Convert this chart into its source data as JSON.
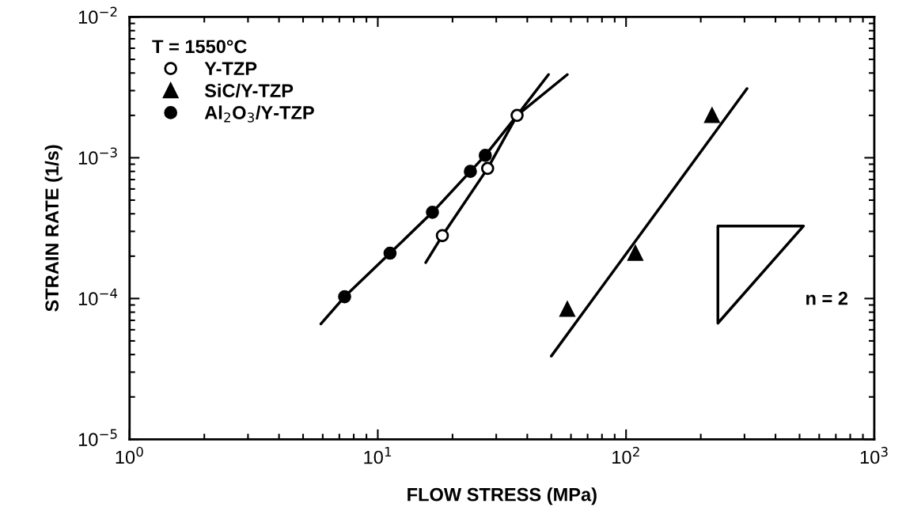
{
  "chart_data": {
    "type": "scatter",
    "xlabel": "FLOW STRESS (MPa)",
    "ylabel": "STRAIN RATE (1/s)",
    "legend_title": "T = 1550°C",
    "legend": "top left",
    "log": "xy",
    "grid": false,
    "xlim": [
      1,
      1000
    ],
    "ylim": [
      1e-05,
      0.01
    ],
    "xticks": [
      {
        "value": 1,
        "label": "10$^{0}$"
      },
      {
        "value": 10,
        "label": "10$^{1}$"
      },
      {
        "value": 100,
        "label": "10$^{2}$"
      },
      {
        "value": 1000,
        "label": "10$^{3}$"
      }
    ],
    "yticks": [
      {
        "value": 1e-05,
        "label": "10$^{−5}$"
      },
      {
        "value": 0.0001,
        "label": "10$^{−4}$"
      },
      {
        "value": 0.001,
        "label": "10$^{−3}$"
      },
      {
        "value": 0.01,
        "label": "10$^{−2}$"
      }
    ],
    "series": [
      {
        "name": "Y-TZP",
        "marker": "circle",
        "color": "#ffffff",
        "x": [
          18.2,
          27.7,
          36.4
        ],
        "values": [
          0.00028,
          0.00084,
          0.002
        ]
      },
      {
        "name": "SiC/Y-TZP",
        "marker": "triangle",
        "color": "#000000",
        "x": [
          58,
          109,
          222
        ],
        "values": [
          8.4e-05,
          0.00021,
          0.002
        ]
      },
      {
        "name": "Al$_{2}$O$_{3}$/Y-TZP",
        "marker": "circle",
        "color": "#000000",
        "x": [
          7.35,
          11.2,
          16.6,
          23.6,
          27.1
        ],
        "values": [
          0.000103,
          0.00021,
          0.00041,
          0.0008,
          0.00104
        ]
      },
      {
        "type": "line",
        "color": "#000000",
        "x": [
          15.6,
          18.2,
          27.7,
          36.4,
          48.7
        ],
        "values": [
          0.00018,
          0.00028,
          0.00084,
          0.002,
          0.0039
        ]
      },
      {
        "type": "line",
        "color": "#000000",
        "x": [
          5.9,
          7.35,
          11.2,
          16.6,
          23.6,
          27.1,
          36.4,
          58
        ],
        "values": [
          6.6e-05,
          0.000103,
          0.00021,
          0.00041,
          0.0008,
          0.00104,
          0.002,
          0.0039
        ]
      },
      {
        "type": "line",
        "color": "#000000",
        "x": [
          50,
          307
        ],
        "values": [
          3.9e-05,
          0.0031
        ]
      }
    ],
    "annotations": [
      "n = 2"
    ]
  }
}
